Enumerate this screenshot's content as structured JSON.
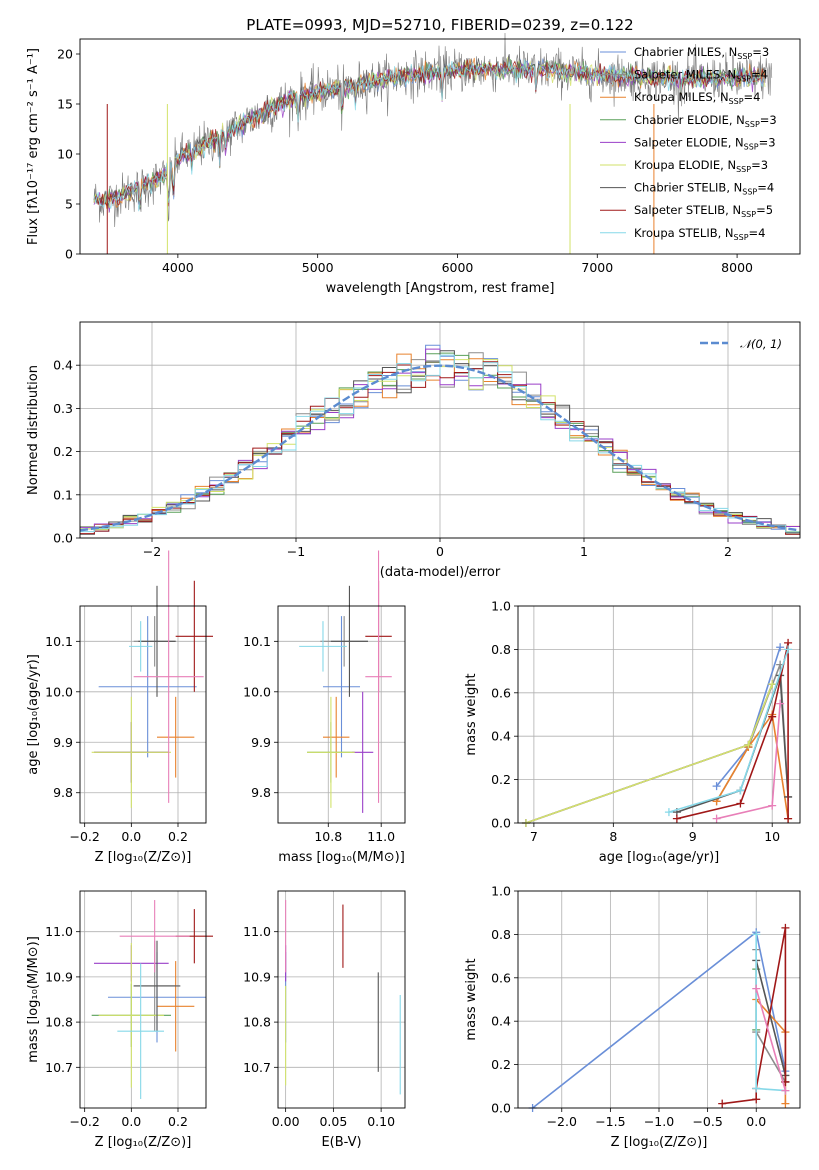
{
  "figure": {
    "title": "PLATE=0993, MJD=52710, FIBERID=0239, z=0.122"
  },
  "colors": {
    "Chabrier MILES": "#6a8fd8",
    "Salpeter MILES": "#8c8c8c",
    "Kroupa MILES": "#e8822e",
    "Chabrier ELODIE": "#5aa05a",
    "Salpeter ELODIE": "#9a3fc8",
    "Kroupa ELODIE": "#d2e26a",
    "Chabrier STELIB": "#555555",
    "Salpeter STELIB": "#a01818",
    "Kroupa STELIB": "#86d8e8",
    "pink": "#e87fb8",
    "spectrum_gray": "#7a7a7a",
    "normal_curve": "#5b8bd0",
    "grid": "#b0b0b0"
  },
  "chart_data": [
    {
      "id": "spectrum",
      "type": "line",
      "xlabel": "wavelength [Angstrom, rest frame]",
      "ylabel": "Flux [fλ10⁻¹⁷ erg cm⁻² s⁻¹ A⁻¹]",
      "xlim": [
        3300,
        8450
      ],
      "ylim": [
        0,
        21.5
      ],
      "xticks": [
        "4000",
        "5000",
        "6000",
        "7000",
        "8000"
      ],
      "yticks": [
        "0",
        "5",
        "10",
        "15",
        "20"
      ],
      "grid": false,
      "legend": {
        "position": "top-right",
        "entries": [
          "Chabrier MILES, N_SSP=3",
          "Salpeter MILES, N_SSP=4",
          "Kroupa MILES, N_SSP=4",
          "Chabrier ELODIE, N_SSP=3",
          "Salpeter ELODIE, N_SSP=3",
          "Kroupa ELODIE, N_SSP=3",
          "Chabrier STELIB, N_SSP=4",
          "Salpeter STELIB, N_SSP=5",
          "Kroupa STELIB, N_SSP=4"
        ]
      },
      "continuum": {
        "x": [
          3400,
          3500,
          3650,
          3800,
          3900,
          4000,
          4200,
          4400,
          4600,
          4800,
          5000,
          5200,
          5500,
          5800,
          6000,
          6300,
          6600,
          6900,
          7200,
          7500,
          7800,
          8100,
          8300
        ],
        "y": [
          5.5,
          5.3,
          6.2,
          7.0,
          7.8,
          9.6,
          11.0,
          12.5,
          14.0,
          15.5,
          16.2,
          16.8,
          17.5,
          18.2,
          18.4,
          18.5,
          18.5,
          18.0,
          17.8,
          17.6,
          17.5,
          17.7,
          17.9
        ]
      }
    },
    {
      "id": "residuals",
      "type": "step",
      "xlabel": "(data-model)/error",
      "ylabel": "Normed distribution",
      "xlim": [
        -2.5,
        2.5
      ],
      "ylim": [
        0,
        0.5
      ],
      "xticks": [
        "−2",
        "−1",
        "0",
        "1",
        "2"
      ],
      "yticks": [
        "0.0",
        "0.1",
        "0.2",
        "0.3",
        "0.4"
      ],
      "grid": true,
      "legend": {
        "position": "top-right",
        "entries": [
          "𝒩(0, 1)"
        ]
      },
      "normal": {
        "mean": 0,
        "sigma": 1
      }
    },
    {
      "id": "age_vs_Z",
      "type": "errorbar",
      "xlabel": "Z [log₁₀(Z/Z⊙)]",
      "ylabel": "age  [log₁₀(age/yr)]",
      "xlim": [
        -0.22,
        0.32
      ],
      "ylim": [
        9.74,
        10.17
      ],
      "xticks": [
        "−0.2",
        "0.0",
        "0.2"
      ],
      "yticks": [
        "9.8",
        "9.9",
        "10.0",
        "10.1"
      ],
      "grid": true,
      "points": [
        {
          "series": "Chabrier MILES",
          "x": 0.07,
          "y": 10.01,
          "xerr": 0.21,
          "yerr": 0.14
        },
        {
          "series": "Salpeter MILES",
          "x": 0.1,
          "y": 10.1,
          "xerr": 0.09,
          "yerr": 0.05
        },
        {
          "series": "Kroupa MILES",
          "x": 0.19,
          "y": 9.91,
          "xerr": 0.08,
          "yerr": 0.08
        },
        {
          "series": "Chabrier ELODIE",
          "x": 0.0,
          "y": 9.88,
          "xerr": 0.16,
          "yerr": 0.06
        },
        {
          "series": "Salpeter ELODIE",
          "x": 0.0,
          "y": 9.88,
          "xerr": 0.16,
          "yerr": 0.06
        },
        {
          "series": "Kroupa ELODIE",
          "x": 0.0,
          "y": 9.88,
          "xerr": 0.17,
          "yerr": 0.11
        },
        {
          "series": "Chabrier STELIB",
          "x": 0.11,
          "y": 10.1,
          "xerr": 0.08,
          "yerr": 0.11
        },
        {
          "series": "Salpeter STELIB",
          "x": 0.27,
          "y": 10.11,
          "xerr": 0.08,
          "yerr": 0.11
        },
        {
          "series": "Kroupa STELIB",
          "x": 0.04,
          "y": 10.09,
          "xerr": 0.05,
          "yerr": 0.05
        },
        {
          "series": "pink",
          "x": 0.16,
          "y": 10.03,
          "xerr": 0.15,
          "yerr": 0.25
        }
      ]
    },
    {
      "id": "age_vs_mass",
      "type": "errorbar",
      "xlabel": "mass [log₁₀(M/M⊙)]",
      "ylabel": "",
      "xlim": [
        10.61,
        11.09
      ],
      "ylim": [
        9.74,
        10.17
      ],
      "xticks": [
        "10.8",
        "11.0"
      ],
      "yticks": [
        "9.8",
        "9.9",
        "10.0",
        "10.1"
      ],
      "grid": true,
      "points": [
        {
          "series": "Chabrier MILES",
          "x": 10.85,
          "y": 10.01,
          "xerr": 0.07,
          "yerr": 0.14
        },
        {
          "series": "Salpeter MILES",
          "x": 10.86,
          "y": 10.1,
          "xerr": 0.09,
          "yerr": 0.05
        },
        {
          "series": "Kroupa MILES",
          "x": 10.83,
          "y": 9.91,
          "xerr": 0.05,
          "yerr": 0.08
        },
        {
          "series": "Chabrier ELODIE",
          "x": 10.81,
          "y": 9.88,
          "xerr": 0.09,
          "yerr": 0.06
        },
        {
          "series": "Salpeter ELODIE",
          "x": 10.93,
          "y": 9.88,
          "xerr": 0.04,
          "yerr": 0.12
        },
        {
          "series": "Kroupa ELODIE",
          "x": 10.81,
          "y": 9.88,
          "xerr": 0.09,
          "yerr": 0.11
        },
        {
          "series": "Chabrier STELIB",
          "x": 10.88,
          "y": 10.1,
          "xerr": 0.07,
          "yerr": 0.11
        },
        {
          "series": "Salpeter STELIB",
          "x": 10.99,
          "y": 10.11,
          "xerr": 0.05,
          "yerr": 0.11
        },
        {
          "series": "Kroupa STELIB",
          "x": 10.78,
          "y": 10.09,
          "xerr": 0.09,
          "yerr": 0.05
        },
        {
          "series": "pink",
          "x": 10.99,
          "y": 10.03,
          "xerr": 0.05,
          "yerr": 0.25
        }
      ]
    },
    {
      "id": "weight_vs_age",
      "type": "line",
      "xlabel": "age  [log₁₀(age/yr)]",
      "ylabel": "mass weight",
      "xlim": [
        6.8,
        10.35
      ],
      "ylim": [
        0,
        1.0
      ],
      "xticks": [
        "7",
        "8",
        "9",
        "10"
      ],
      "yticks": [
        "0.0",
        "0.2",
        "0.4",
        "0.6",
        "0.8",
        "1.0"
      ],
      "grid": true,
      "series": [
        {
          "name": "Chabrier MILES",
          "x": [
            9.3,
            9.7,
            10.1
          ],
          "y": [
            0.17,
            0.35,
            0.81
          ]
        },
        {
          "name": "Salpeter MILES",
          "x": [
            9.3,
            9.7,
            10.1,
            10.2
          ],
          "y": [
            0.1,
            0.35,
            0.73,
            0.12
          ]
        },
        {
          "name": "Kroupa MILES",
          "x": [
            9.3,
            9.7,
            10.0,
            10.2
          ],
          "y": [
            0.1,
            0.35,
            0.5,
            0.02
          ]
        },
        {
          "name": "Chabrier ELODIE",
          "x": [
            6.9,
            9.7,
            10.0
          ],
          "y": [
            0.0,
            0.36,
            0.64
          ]
        },
        {
          "name": "Salpeter ELODIE",
          "x": [
            6.9,
            9.7,
            10.0
          ],
          "y": [
            0.0,
            0.36,
            0.64
          ]
        },
        {
          "name": "Kroupa ELODIE",
          "x": [
            6.9,
            9.7,
            10.0
          ],
          "y": [
            0.0,
            0.36,
            0.64
          ]
        },
        {
          "name": "Chabrier STELIB",
          "x": [
            8.8,
            9.6,
            10.1,
            10.2
          ],
          "y": [
            0.05,
            0.15,
            0.68,
            0.12
          ]
        },
        {
          "name": "Salpeter STELIB",
          "x": [
            8.8,
            9.6,
            10.0,
            10.2,
            10.2
          ],
          "y": [
            0.02,
            0.09,
            0.49,
            0.83,
            0.02
          ]
        },
        {
          "name": "Kroupa STELIB",
          "x": [
            8.7,
            9.6,
            10.2
          ],
          "y": [
            0.05,
            0.15,
            0.8
          ]
        },
        {
          "name": "pink",
          "x": [
            9.3,
            10.0,
            10.1
          ],
          "y": [
            0.02,
            0.08,
            0.55
          ]
        }
      ]
    },
    {
      "id": "mass_vs_Z",
      "type": "errorbar",
      "xlabel": "Z [log₁₀(Z/Z⊙)]",
      "ylabel": "mass [log₁₀(M/M⊙)]",
      "xlim": [
        -0.22,
        0.32
      ],
      "ylim": [
        10.61,
        11.09
      ],
      "xticks": [
        "−0.2",
        "0.0",
        "0.2"
      ],
      "yticks": [
        "10.7",
        "10.8",
        "10.9",
        "11.0"
      ],
      "grid": true,
      "points": [
        {
          "series": "Chabrier MILES",
          "x": 0.11,
          "y": 10.855,
          "xerr": 0.21,
          "yerr": 0.1
        },
        {
          "series": "Salpeter MILES",
          "x": 0.1,
          "y": 10.88,
          "xerr": 0.09,
          "yerr": 0.1
        },
        {
          "series": "Kroupa MILES",
          "x": 0.19,
          "y": 10.835,
          "xerr": 0.08,
          "yerr": 0.1
        },
        {
          "series": "Chabrier ELODIE",
          "x": 0.0,
          "y": 10.815,
          "xerr": 0.17,
          "yerr": 0.07
        },
        {
          "series": "Salpeter ELODIE",
          "x": 0.0,
          "y": 10.93,
          "xerr": 0.16,
          "yerr": 0.04
        },
        {
          "series": "Kroupa ELODIE",
          "x": 0.0,
          "y": 10.815,
          "xerr": 0.14,
          "yerr": 0.16
        },
        {
          "series": "Chabrier STELIB",
          "x": 0.11,
          "y": 10.88,
          "xerr": 0.1,
          "yerr": 0.1
        },
        {
          "series": "Salpeter STELIB",
          "x": 0.27,
          "y": 10.99,
          "xerr": 0.08,
          "yerr": 0.06
        },
        {
          "series": "Kroupa STELIB",
          "x": 0.04,
          "y": 10.78,
          "xerr": 0.1,
          "yerr": 0.15
        },
        {
          "series": "pink",
          "x": 0.1,
          "y": 10.99,
          "xerr": 0.15,
          "yerr": 0.08
        }
      ]
    },
    {
      "id": "ebv_vs_mass",
      "type": "errorbar",
      "xlabel": "E(B-V)",
      "ylabel": "",
      "xlim": [
        -0.008,
        0.125
      ],
      "ylim": [
        10.61,
        11.09
      ],
      "xticks": [
        "0.00",
        "0.05",
        "0.10"
      ],
      "yticks": [
        "10.7",
        "10.8",
        "10.9",
        "11.0"
      ],
      "grid": true,
      "points": [
        {
          "series": "Chabrier MILES",
          "x": 0.0,
          "y": 10.855,
          "xerr": 0,
          "yerr": 0.1
        },
        {
          "series": "Salpeter ELODIE",
          "x": 0.0,
          "y": 10.93,
          "xerr": 0,
          "yerr": 0.04
        },
        {
          "series": "Kroupa ELODIE",
          "x": 0.0,
          "y": 10.77,
          "xerr": 0,
          "yerr": 0.11
        },
        {
          "series": "pink",
          "x": 0.0,
          "y": 10.99,
          "xerr": 0,
          "yerr": 0.08
        },
        {
          "series": "Salpeter STELIB",
          "x": 0.06,
          "y": 10.99,
          "xerr": 0,
          "yerr": 0.07
        },
        {
          "series": "Chabrier STELIB",
          "x": 0.097,
          "y": 10.8,
          "xerr": 0,
          "yerr": 0.11
        },
        {
          "series": "Kroupa STELIB",
          "x": 0.12,
          "y": 10.75,
          "xerr": 0,
          "yerr": 0.11
        }
      ]
    },
    {
      "id": "weight_vs_Z",
      "type": "line",
      "xlabel": "Z [log₁₀(Z/Z⊙)]",
      "ylabel": "mass weight",
      "xlim": [
        -2.45,
        0.45
      ],
      "ylim": [
        0,
        1.0
      ],
      "xticks": [
        "−2.0",
        "−1.5",
        "−1.0",
        "−0.5",
        "0.0"
      ],
      "yticks": [
        "0.0",
        "0.2",
        "0.4",
        "0.6",
        "0.8",
        "1.0"
      ],
      "grid": true,
      "series": [
        {
          "name": "Chabrier MILES",
          "x": [
            -2.3,
            0.0,
            0.3
          ],
          "y": [
            0.0,
            0.81,
            0.17
          ]
        },
        {
          "name": "Salpeter MILES",
          "x": [
            0.0,
            0.0,
            0.3
          ],
          "y": [
            0.73,
            0.35,
            0.12
          ]
        },
        {
          "name": "Kroupa MILES",
          "x": [
            0.0,
            0.3,
            0.3
          ],
          "y": [
            0.5,
            0.35,
            0.02
          ]
        },
        {
          "name": "Chabrier ELODIE",
          "x": [
            0.0,
            0.0
          ],
          "y": [
            0.36,
            0.64
          ]
        },
        {
          "name": "Chabrier STELIB",
          "x": [
            0.0,
            0.3,
            0.3
          ],
          "y": [
            0.68,
            0.15,
            0.12
          ]
        },
        {
          "name": "Salpeter STELIB",
          "x": [
            -0.35,
            0.0,
            0.0,
            0.3,
            0.3
          ],
          "y": [
            0.02,
            0.04,
            0.09,
            0.83,
            0.12
          ]
        },
        {
          "name": "Kroupa STELIB",
          "x": [
            0.0,
            0.0,
            0.3
          ],
          "y": [
            0.8,
            0.09,
            0.08
          ]
        },
        {
          "name": "pink",
          "x": [
            0.0,
            0.3
          ],
          "y": [
            0.55,
            0.08
          ]
        }
      ]
    }
  ]
}
